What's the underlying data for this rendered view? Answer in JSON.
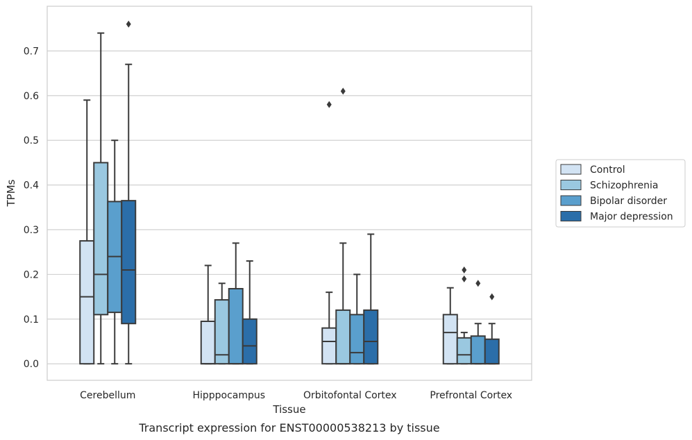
{
  "caption": "Transcript expression for ENST00000538213 by tissue",
  "chart_data": {
    "type": "box",
    "title": "",
    "xlabel": "Tissue",
    "ylabel": "TPMs",
    "ylim": [
      -0.037,
      0.8
    ],
    "yticks": [
      "0.0",
      "0.1",
      "0.2",
      "0.3",
      "0.4",
      "0.5",
      "0.6",
      "0.7"
    ],
    "grid": "horizontal",
    "legend_position": "right",
    "categories": [
      "Cerebellum",
      "Hipppocampus",
      "Orbitofontal Cortex",
      "Prefrontal Cortex"
    ],
    "series": [
      {
        "name": "Control",
        "color": "#d2e3f3",
        "boxes": [
          {
            "min": 0.0,
            "q1": 0.0,
            "median": 0.15,
            "q3": 0.275,
            "max": 0.59,
            "outliers": []
          },
          {
            "min": 0.0,
            "q1": 0.0,
            "median": 0.0,
            "q3": 0.095,
            "max": 0.22,
            "outliers": []
          },
          {
            "min": 0.0,
            "q1": 0.0,
            "median": 0.05,
            "q3": 0.08,
            "max": 0.16,
            "outliers": [
              0.58
            ]
          },
          {
            "min": 0.0,
            "q1": 0.0,
            "median": 0.07,
            "q3": 0.11,
            "max": 0.17,
            "outliers": []
          }
        ]
      },
      {
        "name": "Schizophrenia",
        "color": "#9ac8e0",
        "boxes": [
          {
            "min": 0.0,
            "q1": 0.11,
            "median": 0.2,
            "q3": 0.45,
            "max": 0.74,
            "outliers": []
          },
          {
            "min": 0.0,
            "q1": 0.0,
            "median": 0.02,
            "q3": 0.143,
            "max": 0.18,
            "outliers": []
          },
          {
            "min": 0.0,
            "q1": 0.0,
            "median": 0.0,
            "q3": 0.12,
            "max": 0.27,
            "outliers": [
              0.61
            ]
          },
          {
            "min": 0.0,
            "q1": 0.0,
            "median": 0.02,
            "q3": 0.058,
            "max": 0.07,
            "outliers": [
              0.19,
              0.21
            ]
          }
        ]
      },
      {
        "name": "Bipolar disorder",
        "color": "#5a9fcd",
        "boxes": [
          {
            "min": 0.0,
            "q1": 0.115,
            "median": 0.24,
            "q3": 0.363,
            "max": 0.5,
            "outliers": []
          },
          {
            "min": 0.0,
            "q1": 0.0,
            "median": 0.0,
            "q3": 0.168,
            "max": 0.27,
            "outliers": []
          },
          {
            "min": 0.0,
            "q1": 0.0,
            "median": 0.025,
            "q3": 0.11,
            "max": 0.2,
            "outliers": []
          },
          {
            "min": 0.0,
            "q1": 0.0,
            "median": 0.0,
            "q3": 0.062,
            "max": 0.09,
            "outliers": [
              0.18
            ]
          }
        ]
      },
      {
        "name": "Major depression",
        "color": "#2b6ea9",
        "boxes": [
          {
            "min": 0.0,
            "q1": 0.09,
            "median": 0.21,
            "q3": 0.365,
            "max": 0.67,
            "outliers": [
              0.76
            ]
          },
          {
            "min": 0.0,
            "q1": 0.0,
            "median": 0.04,
            "q3": 0.1,
            "max": 0.23,
            "outliers": []
          },
          {
            "min": 0.0,
            "q1": 0.0,
            "median": 0.05,
            "q3": 0.12,
            "max": 0.29,
            "outliers": []
          },
          {
            "min": 0.0,
            "q1": 0.0,
            "median": 0.0,
            "q3": 0.055,
            "max": 0.09,
            "outliers": [
              0.15
            ]
          }
        ]
      }
    ]
  }
}
